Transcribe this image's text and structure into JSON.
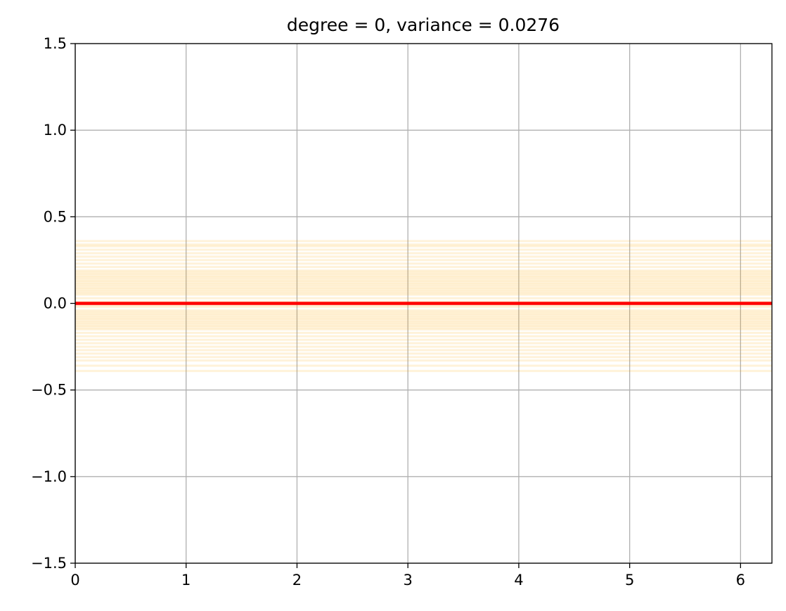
{
  "chart_data": {
    "type": "line",
    "title": "degree = 0, variance = 0.0276",
    "xlabel": "",
    "ylabel": "",
    "xlim": [
      0,
      6.283
    ],
    "ylim": [
      -1.5,
      1.5
    ],
    "x_ticks": [
      0,
      1,
      2,
      3,
      4,
      5,
      6
    ],
    "x_tick_labels": [
      "0",
      "1",
      "2",
      "3",
      "4",
      "5",
      "6"
    ],
    "y_ticks": [
      -1.5,
      -1.0,
      -0.5,
      0.0,
      0.5,
      1.0,
      1.5
    ],
    "y_tick_labels": [
      "−1.5",
      "−1.0",
      "−0.5",
      "0.0",
      "0.5",
      "1.0",
      "1.5"
    ],
    "grid": true,
    "legend": "none",
    "series": [
      {
        "role": "fits",
        "color": "#ffa500",
        "opacity": 0.15,
        "constant_values": [
          0.36,
          0.34,
          0.33,
          0.31,
          0.29,
          0.27,
          0.25,
          0.23,
          0.21,
          0.19,
          0.18,
          0.17,
          0.16,
          0.15,
          0.14,
          0.13,
          0.12,
          0.11,
          0.1,
          0.09,
          0.08,
          0.07,
          0.06,
          0.05,
          0.03,
          0.01,
          -0.01,
          -0.02,
          -0.04,
          -0.05,
          -0.06,
          -0.07,
          -0.08,
          -0.09,
          -0.1,
          -0.11,
          -0.12,
          -0.13,
          -0.14,
          -0.15,
          -0.17,
          -0.19,
          -0.21,
          -0.23,
          -0.25,
          -0.27,
          -0.29,
          -0.31,
          -0.33,
          -0.36,
          -0.39
        ]
      },
      {
        "role": "mean",
        "color": "#ff0000",
        "constant_value": 0.0
      }
    ]
  }
}
